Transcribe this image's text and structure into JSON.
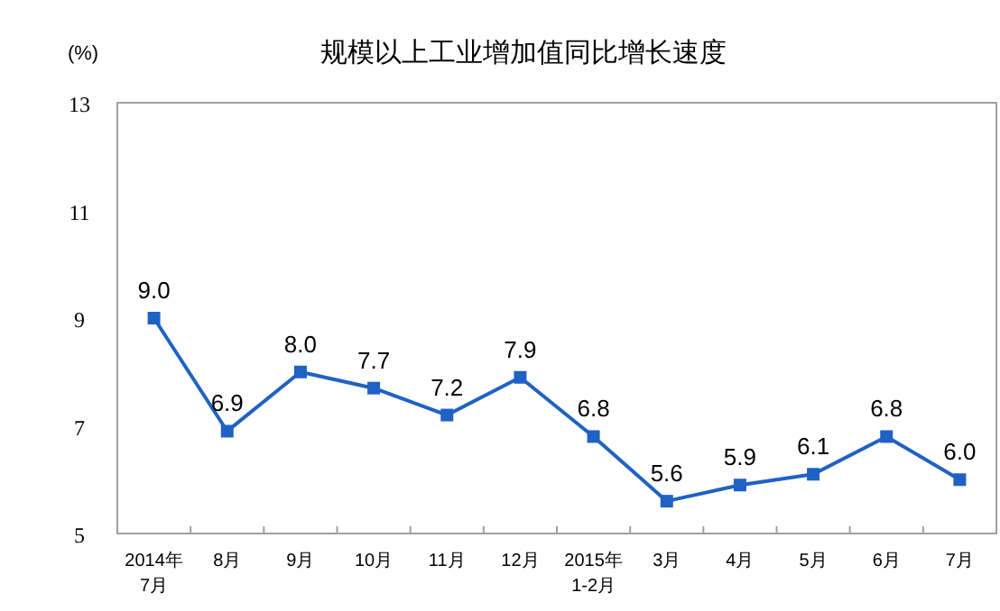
{
  "chart_data": {
    "type": "line",
    "title": "规模以上工业增加值同比增长速度",
    "ylabel": "(%)",
    "categories": [
      "2014年\n7月",
      "8月",
      "9月",
      "10月",
      "11月",
      "12月",
      "2015年\n1-2月",
      "3月",
      "4月",
      "5月",
      "6月",
      "7月"
    ],
    "series": [
      {
        "color": "#1f62c4",
        "values": [
          9.0,
          6.9,
          8.0,
          7.7,
          7.2,
          7.9,
          6.8,
          5.6,
          5.9,
          6.1,
          6.8,
          6.0
        ],
        "value_labels": [
          "9.0",
          "6.9",
          "8.0",
          "7.7",
          "7.2",
          "7.9",
          "6.8",
          "5.6",
          "5.9",
          "6.1",
          "6.8",
          "6.0"
        ]
      }
    ],
    "ylim": [
      5,
      13
    ],
    "yticks": [
      5,
      7,
      9,
      11,
      13
    ],
    "grid": false,
    "marker": "square",
    "line_style": "solid"
  }
}
